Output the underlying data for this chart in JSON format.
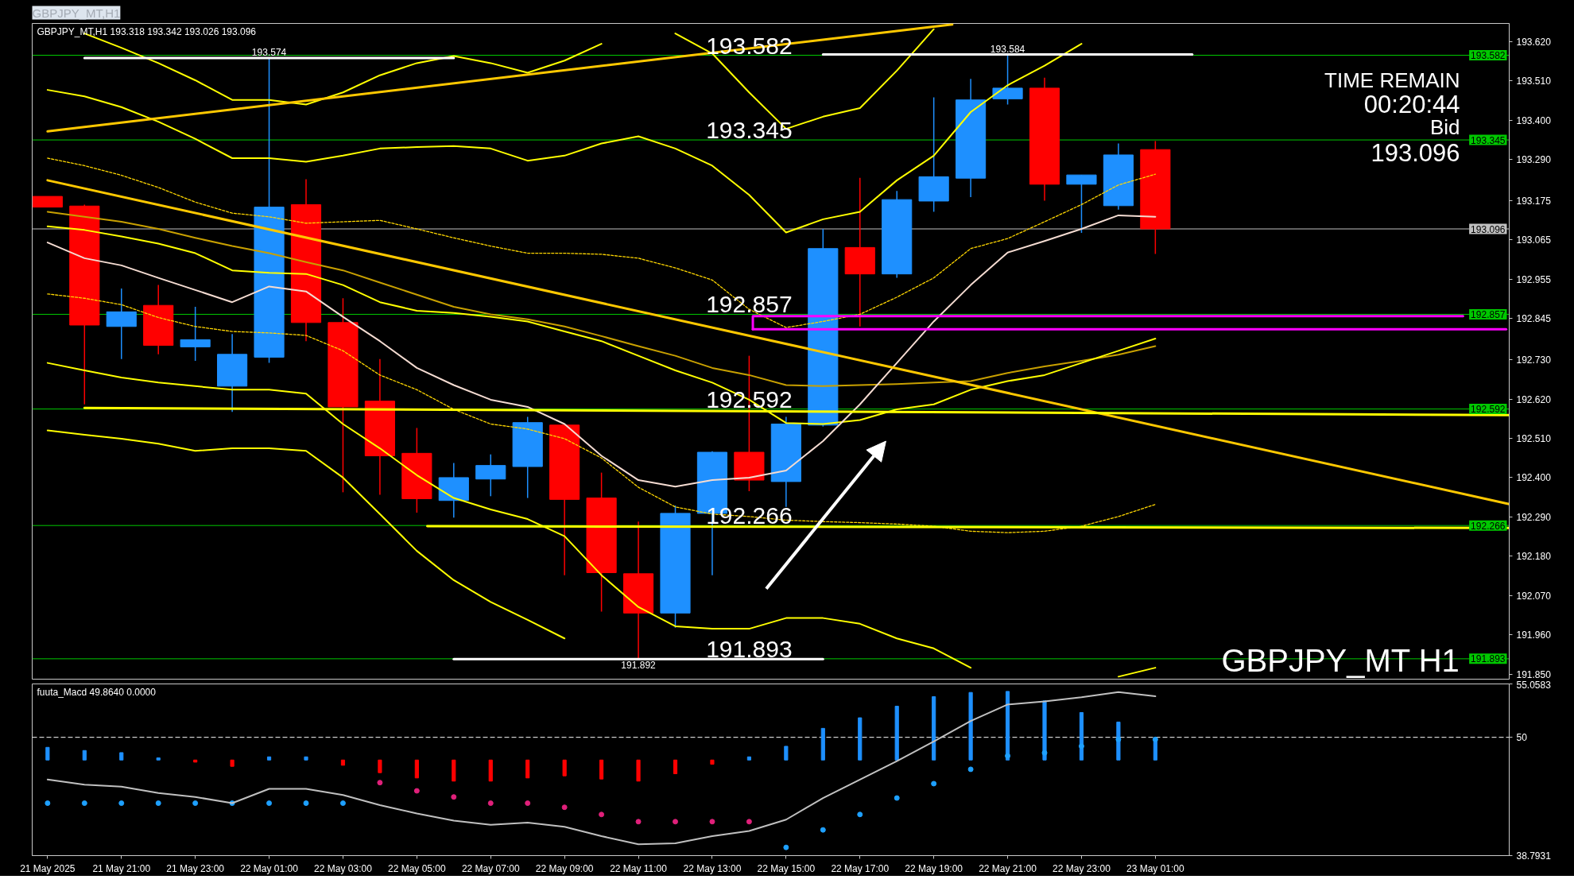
{
  "chart_data": [
    {
      "type": "candlestick",
      "title": "GBPJPY_MT,H1",
      "subtitle": "GBPJPY_MT,H1  193.318 193.342 193.026 193.096",
      "x": [
        "2025-05-21T19:00",
        "2025-05-21T20:00",
        "2025-05-21T21:00",
        "2025-05-21T22:00",
        "2025-05-21T23:00",
        "2025-05-22T00:00",
        "2025-05-22T01:00",
        "2025-05-22T02:00",
        "2025-05-22T03:00",
        "2025-05-22T04:00",
        "2025-05-22T05:00",
        "2025-05-22T06:00",
        "2025-05-22T07:00",
        "2025-05-22T08:00",
        "2025-05-22T09:00",
        "2025-05-22T10:00",
        "2025-05-22T11:00",
        "2025-05-22T12:00",
        "2025-05-22T13:00",
        "2025-05-22T14:00",
        "2025-05-22T15:00",
        "2025-05-22T16:00",
        "2025-05-22T17:00",
        "2025-05-22T18:00",
        "2025-05-22T19:00",
        "2025-05-22T20:00",
        "2025-05-22T21:00",
        "2025-05-22T22:00",
        "2025-05-22T23:00",
        "2025-05-23T00:00",
        "2025-05-23T01:00"
      ],
      "ohlc": [
        [
          193.187,
          193.187,
          193.157,
          193.157
        ],
        [
          193.16,
          193.164,
          192.605,
          192.827
        ],
        [
          192.823,
          192.929,
          192.732,
          192.864
        ],
        [
          192.882,
          192.939,
          192.745,
          192.77
        ],
        [
          192.766,
          192.878,
          192.727,
          192.786
        ],
        [
          192.656,
          192.802,
          192.584,
          192.745
        ],
        [
          192.737,
          193.574,
          192.721,
          193.157
        ],
        [
          193.164,
          193.235,
          192.782,
          192.834
        ],
        [
          192.834,
          192.902,
          192.359,
          192.598
        ],
        [
          192.614,
          192.732,
          192.352,
          192.461
        ],
        [
          192.468,
          192.539,
          192.302,
          192.341
        ],
        [
          192.336,
          192.441,
          192.288,
          192.4
        ],
        [
          192.396,
          192.465,
          192.348,
          192.434
        ],
        [
          192.431,
          192.57,
          192.343,
          192.554
        ],
        [
          192.547,
          192.55,
          192.127,
          192.339
        ],
        [
          192.343,
          192.414,
          192.025,
          192.134
        ],
        [
          192.131,
          192.277,
          191.892,
          192.021
        ],
        [
          192.021,
          192.322,
          191.98,
          192.3
        ],
        [
          192.3,
          192.474,
          192.127,
          192.471
        ],
        [
          192.471,
          192.741,
          192.362,
          192.393
        ],
        [
          192.389,
          192.57,
          192.318,
          192.55
        ],
        [
          192.547,
          193.096,
          192.543,
          193.041
        ],
        [
          193.044,
          193.239,
          192.823,
          192.97
        ],
        [
          192.97,
          193.202,
          192.959,
          193.178
        ],
        [
          193.174,
          193.464,
          193.144,
          193.242
        ],
        [
          193.238,
          193.516,
          193.185,
          193.457
        ],
        [
          193.46,
          193.584,
          193.444,
          193.49
        ],
        [
          193.49,
          193.519,
          193.175,
          193.221
        ],
        [
          193.221,
          193.247,
          193.085,
          193.247
        ],
        [
          193.161,
          193.335,
          193.15,
          193.303
        ],
        [
          193.318,
          193.342,
          193.026,
          193.096
        ]
      ],
      "colors": [
        "#ff0000",
        "#ff0000",
        "#1e90ff",
        "#ff0000",
        "#1e90ff",
        "#1e90ff",
        "#1e90ff",
        "#ff0000",
        "#ff0000",
        "#ff0000",
        "#ff0000",
        "#1e90ff",
        "#1e90ff",
        "#1e90ff",
        "#ff0000",
        "#ff0000",
        "#ff0000",
        "#1e90ff",
        "#1e90ff",
        "#ff0000",
        "#1e90ff",
        "#1e90ff",
        "#ff0000",
        "#1e90ff",
        "#1e90ff",
        "#1e90ff",
        "#1e90ff",
        "#ff0000",
        "#1e90ff",
        "#1e90ff",
        "#ff0000"
      ],
      "series": [
        {
          "type": "line",
          "color": "#ffff00",
          "values": [
            null,
            193.643,
            193.603,
            193.56,
            193.512,
            193.457,
            193.457,
            193.444,
            193.478,
            193.526,
            193.56,
            193.58,
            193.56,
            193.533,
            193.567,
            193.614,
            null,
            193.643,
            193.587,
            193.478,
            193.376,
            193.41,
            193.434,
            193.539,
            193.655,
            null,
            null,
            null,
            null,
            null,
            null
          ]
        },
        {
          "type": "line",
          "color": "#ffff00",
          "values": [
            193.485,
            193.467,
            193.437,
            193.396,
            193.348,
            193.294,
            193.294,
            193.284,
            193.301,
            193.321,
            193.325,
            193.328,
            193.321,
            193.287,
            193.301,
            193.335,
            193.355,
            193.321,
            193.273,
            193.191,
            193.086,
            193.123,
            193.144,
            193.232,
            193.301,
            193.423,
            193.498,
            193.553,
            193.614,
            null,
            null
          ]
        },
        {
          "type": "line",
          "color": "#ffd700",
          "line_style": "dotted",
          "values": [
            193.294,
            193.273,
            193.246,
            193.212,
            193.171,
            193.14,
            193.13,
            193.112,
            193.116,
            193.12,
            193.096,
            193.071,
            193.048,
            193.028,
            193.028,
            193.025,
            193.014,
            192.987,
            192.953,
            192.871,
            192.82,
            192.837,
            192.857,
            192.905,
            192.959,
            193.041,
            193.069,
            193.116,
            193.164,
            193.219,
            193.249
          ]
        },
        {
          "type": "line",
          "color": "#c8a000",
          "values": [
            193.144,
            193.13,
            193.116,
            193.096,
            193.071,
            193.048,
            193.028,
            193.003,
            192.98,
            192.946,
            192.912,
            192.878,
            192.857,
            192.843,
            192.823,
            192.796,
            192.768,
            192.741,
            192.707,
            192.687,
            192.659,
            192.656,
            192.659,
            192.662,
            192.666,
            192.67,
            192.693,
            192.711,
            192.727,
            192.744,
            192.768
          ]
        },
        {
          "type": "line",
          "color": "#ffff00",
          "values": [
            193.103,
            193.093,
            193.075,
            193.055,
            193.028,
            192.98,
            192.973,
            192.97,
            192.939,
            192.891,
            192.867,
            192.861,
            192.85,
            192.837,
            192.809,
            192.782,
            192.741,
            192.7,
            192.666,
            192.618,
            192.553,
            192.55,
            192.561,
            192.591,
            192.605,
            192.646,
            192.67,
            192.687,
            192.721,
            192.755,
            192.789
          ]
        },
        {
          "type": "line",
          "color": "#f5dcd2",
          "values": [
            193.058,
            193.014,
            192.994,
            192.959,
            192.925,
            192.891,
            192.935,
            192.921,
            192.85,
            192.782,
            192.707,
            192.659,
            192.618,
            192.598,
            192.55,
            192.461,
            192.393,
            192.375,
            192.393,
            192.4,
            192.42,
            192.502,
            192.605,
            192.721,
            192.837,
            192.939,
            193.03,
            193.062,
            193.096,
            193.134,
            193.13
          ]
        },
        {
          "type": "line",
          "color": "#ffd700",
          "line_style": "dotted",
          "values": [
            192.914,
            192.902,
            192.884,
            192.848,
            192.823,
            192.809,
            192.805,
            192.798,
            192.755,
            192.687,
            192.646,
            192.591,
            192.55,
            192.536,
            192.509,
            192.455,
            192.373,
            192.318,
            192.298,
            192.291,
            192.281,
            192.277,
            192.274,
            192.27,
            192.264,
            192.25,
            192.246,
            192.25,
            192.264,
            192.291,
            192.325
          ]
        },
        {
          "type": "line",
          "color": "#ffff00",
          "values": [
            192.721,
            192.7,
            192.68,
            192.666,
            192.656,
            192.646,
            192.646,
            192.635,
            192.55,
            192.482,
            192.407,
            192.343,
            192.311,
            192.284,
            192.236,
            192.127,
            192.038,
            191.984,
            191.977,
            191.977,
            192.007,
            192.007,
            191.991,
            191.95,
            191.922,
            191.868,
            null,
            null,
            null,
            191.843,
            191.868
          ]
        },
        {
          "type": "line",
          "color": "#ffff00",
          "values": [
            192.532,
            192.52,
            192.509,
            192.495,
            192.475,
            192.482,
            192.482,
            192.475,
            192.4,
            192.298,
            192.195,
            192.113,
            192.052,
            192.002,
            191.95,
            null,
            null,
            null,
            null,
            null,
            null,
            null,
            null,
            null,
            null,
            null,
            null,
            null,
            null,
            null,
            null
          ]
        },
        {
          "type": "line",
          "color": "#ffc800",
          "x": [
            "2025-05-21T19:00",
            "2025-05-22T19:30"
          ],
          "values": [
            193.369,
            193.668
          ]
        },
        {
          "type": "line",
          "color": "#ffc800",
          "x": [
            "2025-05-21T19:00",
            "2025-05-23T10:35"
          ],
          "values": [
            193.232,
            192.326
          ]
        },
        {
          "type": "line",
          "color": "#ffff00",
          "x": [
            "2025-05-21T20:00",
            "2025-05-23T10:35"
          ],
          "values": [
            192.595,
            192.575
          ]
        },
        {
          "type": "line",
          "color": "#ffff00",
          "x": [
            "2025-05-22T05:17",
            "2025-05-23T10:35"
          ],
          "values": [
            192.264,
            192.259
          ]
        },
        {
          "type": "line",
          "color": "#ffffff",
          "x": [
            "2025-05-21T20:00",
            "2025-05-22T06:00"
          ],
          "values": [
            193.574,
            193.574
          ]
        },
        {
          "type": "line",
          "color": "#ffffff",
          "x": [
            "2025-05-22T16:00",
            "2025-05-23T02:00"
          ],
          "values": [
            193.584,
            193.584
          ]
        },
        {
          "type": "line",
          "color": "#ffffff",
          "x": [
            "2025-05-22T06:00",
            "2025-05-22T16:00"
          ],
          "values": [
            191.892,
            191.892
          ]
        },
        {
          "type": "line",
          "color": "#ff00ff",
          "x": [
            "2025-05-22T14:06",
            "2025-05-22T14:06",
            "2025-05-23T09:20"
          ],
          "values": [
            192.815,
            192.852,
            192.852
          ]
        },
        {
          "type": "line",
          "color": "#ff00ff",
          "x": [
            "2025-05-22T14:06",
            "2025-05-23T10:30"
          ],
          "values": [
            192.815,
            192.815
          ]
        }
      ],
      "xlim": [
        "2025-05-21T18:35",
        "2025-05-23T10:35"
      ],
      "ylim": [
        191.836,
        193.671
      ],
      "yticks": [
        {
          "value": 193.62,
          "label": "193.620"
        },
        {
          "value": 193.51,
          "label": "193.510"
        },
        {
          "value": 193.4,
          "label": "193.400"
        },
        {
          "value": 193.29,
          "label": "193.290"
        },
        193.175,
        193.065,
        192.955,
        192.845,
        {
          "value": 192.73,
          "label": "192.730"
        },
        {
          "value": 192.62,
          "label": "192.620"
        },
        {
          "value": 192.51,
          "label": "192.510"
        },
        {
          "value": 192.4,
          "label": "192.400"
        },
        {
          "value": 192.29,
          "label": "192.290"
        },
        {
          "value": 192.18,
          "label": "192.180"
        },
        {
          "value": 192.07,
          "label": "192.070"
        },
        {
          "value": 191.96,
          "label": "191.960"
        },
        {
          "value": 191.85,
          "label": "191.850"
        }
      ],
      "tick_labels": "y",
      "ref_lines": [
        {
          "axis": "y",
          "value": 193.582,
          "label": "193.582",
          "color": "#00c800"
        },
        {
          "axis": "y",
          "value": 193.345,
          "label": "193.345",
          "color": "#00c800"
        },
        {
          "axis": "y",
          "value": 192.857,
          "label": "192.857",
          "color": "#00c800"
        },
        {
          "axis": "y",
          "value": 192.592,
          "label": "192.592",
          "color": "#00c800"
        },
        {
          "axis": "y",
          "value": 192.266,
          "label": "192.266",
          "color": "#00c800"
        },
        {
          "axis": "y",
          "value": 191.893,
          "label": "191.893",
          "color": "#00c800"
        },
        {
          "axis": "y",
          "value": 193.096,
          "label": "193.096",
          "color": "#c0c0c0"
        }
      ],
      "annotations": [
        {
          "text": "193.574",
          "x": "2025-05-22T01:00",
          "y": 193.574
        },
        {
          "text": "193.584",
          "x": "2025-05-22T21:00",
          "y": 193.584
        },
        {
          "text": "191.892",
          "x": "2025-05-22T11:00",
          "y": 191.892
        },
        {
          "text": "193.582",
          "x": "2025-05-22T14:00",
          "y": 193.582
        },
        {
          "text": "193.345",
          "x": "2025-05-22T14:00",
          "y": 193.345
        },
        {
          "text": "192.857",
          "x": "2025-05-22T14:00",
          "y": 192.857
        },
        {
          "text": "192.592",
          "x": "2025-05-22T14:00",
          "y": 192.592
        },
        {
          "text": "192.266",
          "x": "2025-05-22T14:00",
          "y": 192.266
        },
        {
          "text": "191.893",
          "x": "2025-05-22T14:00",
          "y": 191.893
        },
        "TIME REMAIN",
        "00:20:44",
        "Bid",
        "193.096",
        "GBPJPY_MT H1"
      ]
    },
    {
      "type": "bar",
      "title": "fuuta_Macd 49.8640 0.0000",
      "x": [
        "2025-05-21T19:00",
        "2025-05-21T20:00",
        "2025-05-21T21:00",
        "2025-05-21T22:00",
        "2025-05-21T23:00",
        "2025-05-22T00:00",
        "2025-05-22T01:00",
        "2025-05-22T02:00",
        "2025-05-22T03:00",
        "2025-05-22T04:00",
        "2025-05-22T05:00",
        "2025-05-22T06:00",
        "2025-05-22T07:00",
        "2025-05-22T08:00",
        "2025-05-22T09:00",
        "2025-05-22T10:00",
        "2025-05-22T11:00",
        "2025-05-22T12:00",
        "2025-05-22T13:00",
        "2025-05-22T14:00",
        "2025-05-22T15:00",
        "2025-05-22T16:00",
        "2025-05-22T17:00",
        "2025-05-22T18:00",
        "2025-05-22T19:00",
        "2025-05-22T20:00",
        "2025-05-22T21:00",
        "2025-05-22T22:00",
        "2025-05-22T23:00",
        "2025-05-23T00:00",
        "2025-05-23T01:00"
      ],
      "series": [
        {
          "type": "bar",
          "values": [
            1.2,
            0.9,
            0.7,
            0.2,
            -0.2,
            -0.6,
            0.3,
            0.3,
            -0.5,
            -1.2,
            -1.7,
            -2.0,
            -2.0,
            -1.7,
            -1.5,
            -1.8,
            -2.0,
            -1.3,
            -0.4,
            0.3,
            1.3,
            3.0,
            4.0,
            5.1,
            6.0,
            6.4,
            6.5,
            5.6,
            4.5,
            3.6,
            2.0
          ],
          "base": [
            47.85,
            47.85,
            47.85,
            47.85,
            47.85,
            47.85,
            47.85,
            47.85,
            47.85,
            47.85,
            47.85,
            47.85,
            47.85,
            47.85,
            47.85,
            47.85,
            47.85,
            47.85,
            47.85,
            47.85,
            47.85,
            47.85,
            47.85,
            47.85,
            47.85,
            47.85,
            47.85,
            47.85,
            47.85,
            47.85,
            47.85
          ],
          "colors": [
            "#1e90ff",
            "#1e90ff",
            "#1e90ff",
            "#1e90ff",
            "#ff0000",
            "#ff0000",
            "#1e90ff",
            "#1e90ff",
            "#ff0000",
            "#ff0000",
            "#ff0000",
            "#ff0000",
            "#ff0000",
            "#ff0000",
            "#ff0000",
            "#ff0000",
            "#ff0000",
            "#ff0000",
            "#ff0000",
            "#1e90ff",
            "#1e90ff",
            "#1e90ff",
            "#1e90ff",
            "#1e90ff",
            "#1e90ff",
            "#1e90ff",
            "#1e90ff",
            "#1e90ff",
            "#1e90ff",
            "#1e90ff",
            "#1e90ff"
          ]
        },
        {
          "type": "scatter",
          "marker": "circle",
          "color": "#1ea0ff",
          "values": [
            43.76,
            43.76,
            43.76,
            43.76,
            43.76,
            43.76,
            43.76,
            43.76,
            43.76,
            null,
            null,
            null,
            null,
            null,
            null,
            null,
            null,
            null,
            null,
            null,
            39.57,
            41.23,
            42.69,
            44.25,
            45.61,
            46.97,
            48.24,
            48.53,
            49.16,
            49.8,
            49.8
          ]
        },
        {
          "type": "scatter",
          "marker": "circle",
          "color": "#e0207a",
          "values": [
            null,
            null,
            null,
            null,
            null,
            null,
            null,
            null,
            null,
            45.71,
            44.93,
            44.35,
            43.76,
            43.76,
            43.37,
            42.69,
            42.01,
            42.01,
            42.01,
            42.01,
            null,
            null,
            null,
            null,
            null,
            null,
            null,
            null,
            null,
            null,
            null
          ]
        },
        {
          "type": "line",
          "color": "#c0c0c0",
          "values": [
            46.0,
            45.51,
            45.32,
            44.73,
            44.35,
            43.76,
            45.12,
            45.12,
            44.54,
            43.57,
            42.79,
            42.1,
            41.71,
            41.91,
            41.52,
            40.64,
            39.86,
            39.96,
            40.64,
            41.13,
            42.2,
            44.25,
            46.0,
            47.75,
            49.6,
            51.55,
            53.11,
            53.4,
            53.79,
            54.28,
            53.89
          ]
        }
      ],
      "xlim": [
        "2025-05-21T18:35",
        "2025-05-23T10:35"
      ],
      "xticks": [
        {
          "value": "2025-05-21T19:00",
          "label": "21 May 2025"
        },
        {
          "value": "2025-05-21T21:00",
          "label": "21 May 21:00"
        },
        {
          "value": "2025-05-21T23:00",
          "label": "21 May 23:00"
        },
        {
          "value": "2025-05-22T01:00",
          "label": "22 May 01:00"
        },
        {
          "value": "2025-05-22T03:00",
          "label": "22 May 03:00"
        },
        {
          "value": "2025-05-22T05:00",
          "label": "22 May 05:00"
        },
        {
          "value": "2025-05-22T07:00",
          "label": "22 May 07:00"
        },
        {
          "value": "2025-05-22T09:00",
          "label": "22 May 09:00"
        },
        {
          "value": "2025-05-22T11:00",
          "label": "22 May 11:00"
        },
        {
          "value": "2025-05-22T13:00",
          "label": "22 May 13:00"
        },
        {
          "value": "2025-05-22T15:00",
          "label": "22 May 15:00"
        },
        {
          "value": "2025-05-22T17:00",
          "label": "22 May 17:00"
        },
        {
          "value": "2025-05-22T19:00",
          "label": "22 May 19:00"
        },
        {
          "value": "2025-05-22T21:00",
          "label": "22 May 21:00"
        },
        {
          "value": "2025-05-22T23:00",
          "label": "22 May 23:00"
        },
        {
          "value": "2025-05-23T01:00",
          "label": "23 May 01:00"
        }
      ],
      "ylim": [
        38.7931,
        55.0583
      ],
      "yticks": [
        55.0583,
        50,
        38.7931
      ],
      "ref_lines": [
        {
          "axis": "y",
          "value": 50,
          "color": "#ffffff",
          "line_style": "dashed"
        }
      ]
    }
  ]
}
